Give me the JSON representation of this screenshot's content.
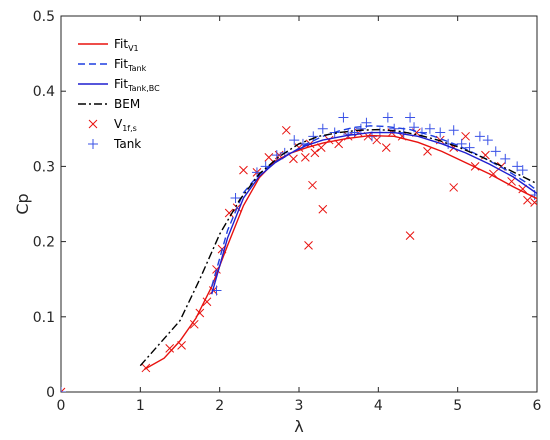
{
  "chart_data": {
    "type": "line",
    "xlabel": "λ",
    "ylabel": "Cp",
    "xlim": [
      0,
      6
    ],
    "ylim": [
      0,
      0.5
    ],
    "xticks": [
      "0",
      "1",
      "2",
      "3",
      "4",
      "5",
      "6"
    ],
    "yticks": [
      "0",
      "0.1",
      "0.2",
      "0.3",
      "0.4",
      "0.5"
    ],
    "grid": false,
    "legend_position": "top-left",
    "series": [
      {
        "name": "Fit",
        "name_sub": "V1",
        "kind": "line",
        "dash": "solid",
        "color": "#e8120f",
        "x": [
          1.05,
          1.3,
          1.5,
          1.7,
          1.9,
          2.1,
          2.3,
          2.5,
          2.7,
          2.9,
          3.1,
          3.3,
          3.6,
          3.9,
          4.2,
          4.5,
          4.8,
          5.1,
          5.4,
          5.7,
          6.0
        ],
        "y": [
          0.03,
          0.045,
          0.068,
          0.098,
          0.14,
          0.195,
          0.248,
          0.285,
          0.307,
          0.318,
          0.325,
          0.331,
          0.337,
          0.341,
          0.34,
          0.332,
          0.32,
          0.305,
          0.29,
          0.273,
          0.257
        ]
      },
      {
        "name": "Fit",
        "name_sub": "Tank",
        "kind": "line",
        "dash": "dashed",
        "color": "#1f3fe0",
        "x": [
          1.9,
          2.1,
          2.3,
          2.5,
          2.7,
          2.9,
          3.1,
          3.3,
          3.5,
          3.7,
          3.9,
          4.1,
          4.4,
          4.7,
          5.0,
          5.3,
          5.6,
          5.9,
          6.0
        ],
        "y": [
          0.14,
          0.215,
          0.265,
          0.29,
          0.306,
          0.318,
          0.33,
          0.34,
          0.347,
          0.352,
          0.354,
          0.353,
          0.349,
          0.34,
          0.328,
          0.313,
          0.296,
          0.276,
          0.268
        ]
      },
      {
        "name": "Fit",
        "name_sub": "Tank,BC",
        "kind": "line",
        "dash": "solid",
        "color": "#1f1fcf",
        "x": [
          1.9,
          2.1,
          2.3,
          2.5,
          2.7,
          2.9,
          3.1,
          3.3,
          3.6,
          3.9,
          4.2,
          4.5,
          4.8,
          5.1,
          5.4,
          5.7,
          6.0
        ],
        "y": [
          0.13,
          0.205,
          0.258,
          0.287,
          0.305,
          0.318,
          0.328,
          0.335,
          0.341,
          0.345,
          0.345,
          0.34,
          0.33,
          0.318,
          0.303,
          0.286,
          0.264
        ]
      },
      {
        "name": "BEM",
        "name_sub": "",
        "kind": "line",
        "dash": "dashdot",
        "color": "#000000",
        "x": [
          1.0,
          1.25,
          1.5,
          1.75,
          2.0,
          2.25,
          2.5,
          2.75,
          3.0,
          3.25,
          3.5,
          3.75,
          4.0,
          4.25,
          4.5,
          4.75,
          5.0,
          5.25,
          5.5,
          5.75,
          6.0
        ],
        "y": [
          0.035,
          0.065,
          0.095,
          0.15,
          0.21,
          0.255,
          0.29,
          0.313,
          0.33,
          0.34,
          0.345,
          0.348,
          0.349,
          0.347,
          0.342,
          0.335,
          0.326,
          0.315,
          0.303,
          0.29,
          0.277
        ]
      },
      {
        "name": "V",
        "name_sub": "1f,s",
        "kind": "scatter",
        "marker": "x",
        "color": "#e8120f",
        "x": [
          0.0,
          1.07,
          1.37,
          1.52,
          1.68,
          1.75,
          1.84,
          1.92,
          1.96,
          2.03,
          2.12,
          2.22,
          2.3,
          2.47,
          2.62,
          2.75,
          2.84,
          2.93,
          3.0,
          3.08,
          3.14,
          3.2,
          3.28,
          3.38,
          3.5,
          3.62,
          3.75,
          3.87,
          3.98,
          4.1,
          4.17,
          4.3,
          4.4,
          4.48,
          4.62,
          4.78,
          4.95,
          5.1,
          5.22,
          5.35,
          5.45,
          5.55,
          5.68,
          5.82,
          5.88,
          5.97,
          3.12,
          3.17,
          3.3,
          4.95
        ],
        "y": [
          0.0,
          0.032,
          0.058,
          0.062,
          0.09,
          0.105,
          0.12,
          0.135,
          0.163,
          0.19,
          0.238,
          0.245,
          0.295,
          0.292,
          0.312,
          0.315,
          0.348,
          0.31,
          0.325,
          0.312,
          0.33,
          0.318,
          0.325,
          0.335,
          0.33,
          0.34,
          0.345,
          0.34,
          0.335,
          0.325,
          0.345,
          0.34,
          0.208,
          0.345,
          0.32,
          0.335,
          0.325,
          0.34,
          0.3,
          0.315,
          0.29,
          0.3,
          0.28,
          0.27,
          0.255,
          0.252,
          0.195,
          0.275,
          0.243,
          0.272
        ]
      },
      {
        "name": "Tank",
        "name_sub": "",
        "kind": "scatter",
        "marker": "plus",
        "color": "#3a52e6",
        "x": [
          0.0,
          1.96,
          2.2,
          2.47,
          2.58,
          2.72,
          2.82,
          2.94,
          3.05,
          3.18,
          3.3,
          3.45,
          3.56,
          3.62,
          3.7,
          3.78,
          3.85,
          3.92,
          4.02,
          4.12,
          4.2,
          4.32,
          4.4,
          4.45,
          4.55,
          4.65,
          4.78,
          4.88,
          4.95,
          5.05,
          5.15,
          5.28,
          5.38,
          5.48,
          5.6,
          5.75,
          5.82,
          5.97
        ],
        "y": [
          0.0,
          0.135,
          0.258,
          0.292,
          0.3,
          0.315,
          0.318,
          0.335,
          0.33,
          0.34,
          0.35,
          0.345,
          0.365,
          0.343,
          0.345,
          0.35,
          0.358,
          0.34,
          0.345,
          0.365,
          0.35,
          0.345,
          0.365,
          0.352,
          0.345,
          0.35,
          0.345,
          0.33,
          0.348,
          0.33,
          0.325,
          0.34,
          0.335,
          0.32,
          0.31,
          0.3,
          0.295,
          0.262
        ]
      }
    ]
  }
}
